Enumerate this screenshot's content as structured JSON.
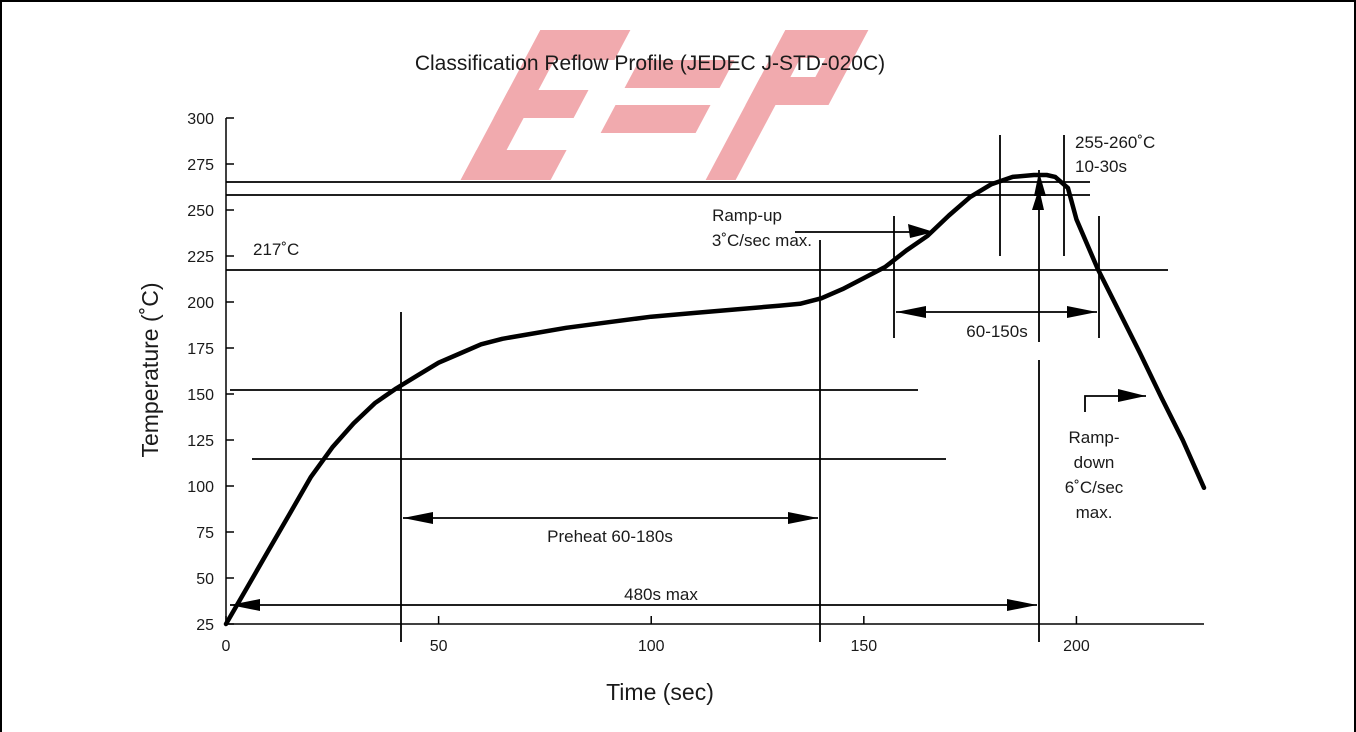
{
  "chart_data": {
    "type": "line",
    "title": "Classification Reflow Profile (JEDEC J-STD-020C)",
    "xlabel": "Time (sec)",
    "ylabel": "Temperature (˚C)",
    "xlim": [
      0,
      230
    ],
    "ylim": [
      25,
      300
    ],
    "xticks": [
      0,
      50,
      100,
      150,
      200
    ],
    "yticks": [
      300,
      275,
      250,
      225,
      200,
      175,
      150,
      125,
      100,
      75,
      50,
      25
    ],
    "grid": false,
    "series": [
      {
        "x": [
          0,
          5,
          10,
          15,
          20,
          25,
          30,
          35,
          40,
          45,
          50,
          55,
          60,
          65,
          70,
          80,
          90,
          100,
          110,
          120,
          130,
          135,
          140,
          145,
          150,
          155,
          160,
          165,
          170,
          175,
          180,
          185,
          190,
          193,
          195,
          198,
          200,
          205,
          210,
          215,
          220,
          225,
          230
        ],
        "y": [
          25,
          45,
          65,
          85,
          105,
          121,
          134,
          145,
          153,
          160,
          167,
          172,
          177,
          180,
          182,
          186,
          189,
          192,
          194,
          196,
          198,
          199,
          202,
          207,
          213,
          219,
          228,
          236,
          247,
          257,
          264,
          268,
          269,
          269,
          268,
          262,
          245,
          218,
          195,
          172,
          148,
          125,
          99
        ]
      }
    ],
    "annotations": {
      "t217": "217˚C",
      "ramp_up_1": "Ramp-up",
      "ramp_up_2": "3˚C/sec max.",
      "peak_1": "255-260˚C",
      "peak_2": "10-30s",
      "above_liquidus": "60-150s",
      "preheat": "Preheat 60-180s",
      "total": "480s max",
      "ramp_down_1": "Ramp-",
      "ramp_down_2": "down",
      "ramp_down_3": "6˚C/sec",
      "ramp_down_4": "max."
    }
  },
  "watermark": {
    "color": "#e8737a"
  }
}
